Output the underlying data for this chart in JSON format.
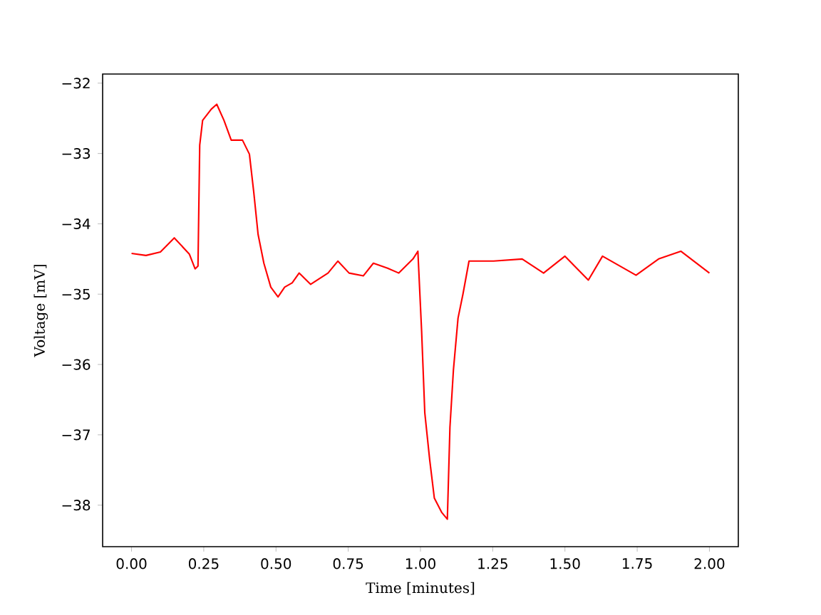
{
  "chart_data": {
    "type": "line",
    "xlabel": "Time [minutes]",
    "ylabel": "Voltage [mV]",
    "x": [
      0,
      0.05,
      0.1,
      0.148,
      0.2,
      0.22,
      0.23,
      0.236,
      0.246,
      0.276,
      0.295,
      0.32,
      0.345,
      0.384,
      0.408,
      0.423,
      0.438,
      0.458,
      0.482,
      0.507,
      0.53,
      0.556,
      0.58,
      0.62,
      0.68,
      0.714,
      0.753,
      0.802,
      0.837,
      0.886,
      0.925,
      0.974,
      0.991,
      1.004,
      1.015,
      1.032,
      1.048,
      1.073,
      1.093,
      1.102,
      1.114,
      1.13,
      1.147,
      1.168,
      1.253,
      1.352,
      1.426,
      1.5,
      1.581,
      1.63,
      1.746,
      1.824,
      1.901,
      2.0
    ],
    "series": [
      {
        "color": "#ff0000",
        "values": [
          -34.42,
          -34.45,
          -34.4,
          -34.2,
          -34.43,
          -34.64,
          -34.6,
          -32.88,
          -32.53,
          -32.37,
          -32.3,
          -32.53,
          -32.81,
          -32.81,
          -33.01,
          -33.55,
          -34.15,
          -34.56,
          -34.9,
          -35.04,
          -34.9,
          -34.84,
          -34.7,
          -34.86,
          -34.7,
          -34.53,
          -34.7,
          -34.74,
          -34.56,
          -34.63,
          -34.7,
          -34.5,
          -34.39,
          -35.53,
          -36.69,
          -37.36,
          -37.9,
          -38.1,
          -38.2,
          -36.89,
          -36.08,
          -35.34,
          -35.0,
          -34.53,
          -34.53,
          -34.5,
          -34.7,
          -34.46,
          -34.8,
          -34.46,
          -34.73,
          -34.5,
          -34.39,
          -34.7
        ]
      }
    ],
    "xlim": [
      -0.1,
      2.1
    ],
    "ylim": [
      -38.59,
      -31.87
    ],
    "xticks": [
      {
        "value": 0,
        "label": "0.00"
      },
      {
        "value": 0.25,
        "label": "0.25"
      },
      {
        "value": 0.5,
        "label": "0.50"
      },
      {
        "value": 0.75,
        "label": "0.75"
      },
      {
        "value": 1,
        "label": "1.00"
      },
      {
        "value": 1.25,
        "label": "1.25"
      },
      {
        "value": 1.5,
        "label": "1.50"
      },
      {
        "value": 1.75,
        "label": "1.75"
      },
      {
        "value": 2,
        "label": "2.00"
      }
    ],
    "yticks": [
      {
        "value": -38,
        "label": "−38"
      },
      {
        "value": -37,
        "label": "−37"
      },
      {
        "value": -36,
        "label": "−36"
      },
      {
        "value": -35,
        "label": "−35"
      },
      {
        "value": -34,
        "label": "−34"
      },
      {
        "value": -33,
        "label": "−33"
      },
      {
        "value": -32,
        "label": "−32"
      }
    ]
  }
}
